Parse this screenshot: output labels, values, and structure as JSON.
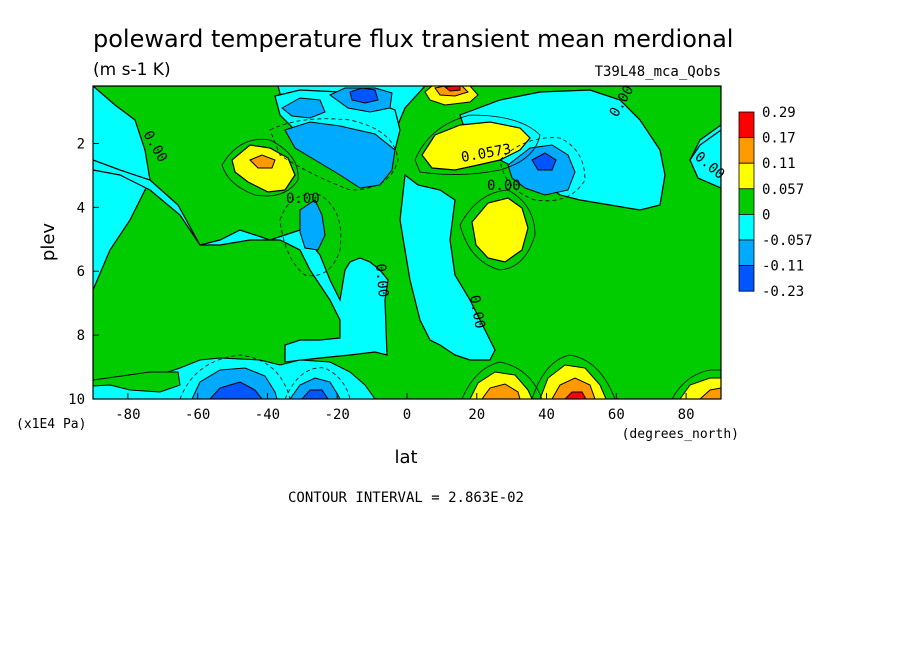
{
  "chart_data": {
    "type": "heatmap",
    "title": "poleward temperature flux transient mean merdional",
    "units": "(m s-1 K)",
    "dataset": "T39L48_mca_Qobs",
    "xlabel": "lat",
    "x_units": "(degrees_north)",
    "ylabel": "plev",
    "y_units": "(x1E4 Pa)",
    "xlim": [
      -90,
      90
    ],
    "ylim": [
      10,
      0.2
    ],
    "x_ticks": [
      "-80",
      "-60",
      "-40",
      "-20",
      "0",
      "20",
      "40",
      "60",
      "80"
    ],
    "y_ticks": [
      "2",
      "4",
      "6",
      "8",
      "10"
    ],
    "contour_interval_text": "CONTOUR INTERVAL = 2.863E-02",
    "colorbar": {
      "labels": [
        "0.29",
        "0.17",
        "0.11",
        "0.057",
        "0",
        "-0.057",
        "-0.11",
        "-0.23"
      ],
      "colors": [
        "#ff0000",
        "#ff9900",
        "#ffff00",
        "#00cc00",
        "#00ffff",
        "#00aaff",
        "#0055ff"
      ]
    },
    "contour_labels": [
      "0.00",
      "0.00",
      "0.00",
      "0.00",
      "0.00",
      "0.00",
      "0.00",
      "0.0573"
    ],
    "features": [
      {
        "lat": -40,
        "plev": 2.6,
        "value": 0.11
      },
      {
        "lat": -30,
        "plev": 1.6,
        "value": -0.057
      },
      {
        "lat": -28,
        "plev": 4.5,
        "value": -0.057
      },
      {
        "lat": -15,
        "plev": 1.8,
        "value": -0.11
      },
      {
        "lat": -15,
        "plev": 0.5,
        "value": -0.11
      },
      {
        "lat": 12,
        "plev": 0.4,
        "value": 0.11
      },
      {
        "lat": 20,
        "plev": 2.0,
        "value": 0.11
      },
      {
        "lat": 28,
        "plev": 4.5,
        "value": 0.057
      },
      {
        "lat": 40,
        "plev": 2.5,
        "value": -0.11
      },
      {
        "lat": -45,
        "plev": 9.7,
        "value": -0.11
      },
      {
        "lat": -26,
        "plev": 9.7,
        "value": -0.11
      },
      {
        "lat": 26,
        "plev": 9.7,
        "value": 0.17
      },
      {
        "lat": 46,
        "plev": 9.7,
        "value": 0.29
      },
      {
        "lat": 86,
        "plev": 9.8,
        "value": 0.11
      }
    ]
  }
}
